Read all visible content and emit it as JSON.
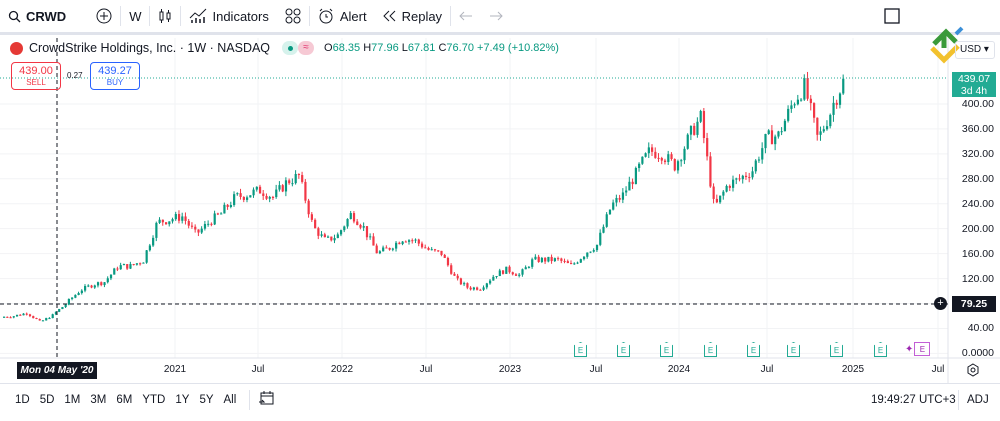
{
  "toolbar": {
    "symbol": "CRWD",
    "interval": "W",
    "indicators": "Indicators",
    "alert": "Alert",
    "replay": "Replay"
  },
  "legend": {
    "name": "CrowdStrike Holdings, Inc. · 1W · NASDAQ",
    "o_label": "O",
    "o": "68.35",
    "h_label": "H",
    "h": "77.96",
    "l_label": "L",
    "l": "67.81",
    "c_label": "C",
    "c": "76.70",
    "change": "+7.49 (+10.82%)"
  },
  "trade": {
    "sell_price": "439.00",
    "sell_label": "SELL",
    "spread": "0.27",
    "buy_price": "439.27",
    "buy_label": "BUY"
  },
  "currency": "USD",
  "price_axis": {
    "ticks": [
      "400.00",
      "360.00",
      "320.00",
      "280.00",
      "240.00",
      "200.00",
      "160.00",
      "120.00",
      "40.00",
      "0.0000"
    ],
    "last_price": "439.07",
    "countdown": "3d 4h",
    "crosshair_price": "79.25"
  },
  "time_axis": {
    "crosshair_date": "Mon 04 May '20",
    "ticks": [
      "2021",
      "Jul",
      "2022",
      "Jul",
      "2023",
      "Jul",
      "2024",
      "Jul",
      "2025",
      "Jul"
    ]
  },
  "earnings_label": "E",
  "bottom": {
    "ranges": [
      "1D",
      "5D",
      "1M",
      "3M",
      "6M",
      "YTD",
      "1Y",
      "5Y",
      "All"
    ],
    "clock": "19:49:27 UTC+3",
    "adj": "ADJ"
  },
  "colors": {
    "up": "#089981",
    "down": "#f23645",
    "last_price": "#22ab94"
  },
  "chart_data": {
    "type": "candlestick",
    "interval": "1W",
    "approx_monthly_close": {
      "start": "2020-01",
      "values": [
        60,
        65,
        50,
        62,
        80,
        100,
        110,
        115,
        140,
        140,
        150,
        210,
        215,
        220,
        190,
        210,
        225,
        250,
        255,
        262,
        250,
        275,
        285,
        205,
        180,
        190,
        225,
        200,
        160,
        170,
        185,
        180,
        165,
        160,
        120,
        105,
        105,
        125,
        135,
        125,
        150,
        150,
        150,
        140,
        160,
        175,
        235,
        255,
        290,
        325,
        320,
        300,
        345,
        380,
        230,
        270,
        280,
        295,
        345,
        350,
        400,
        430,
        340,
        390,
        439.07
      ]
    },
    "ylim": [
      0,
      460
    ]
  }
}
